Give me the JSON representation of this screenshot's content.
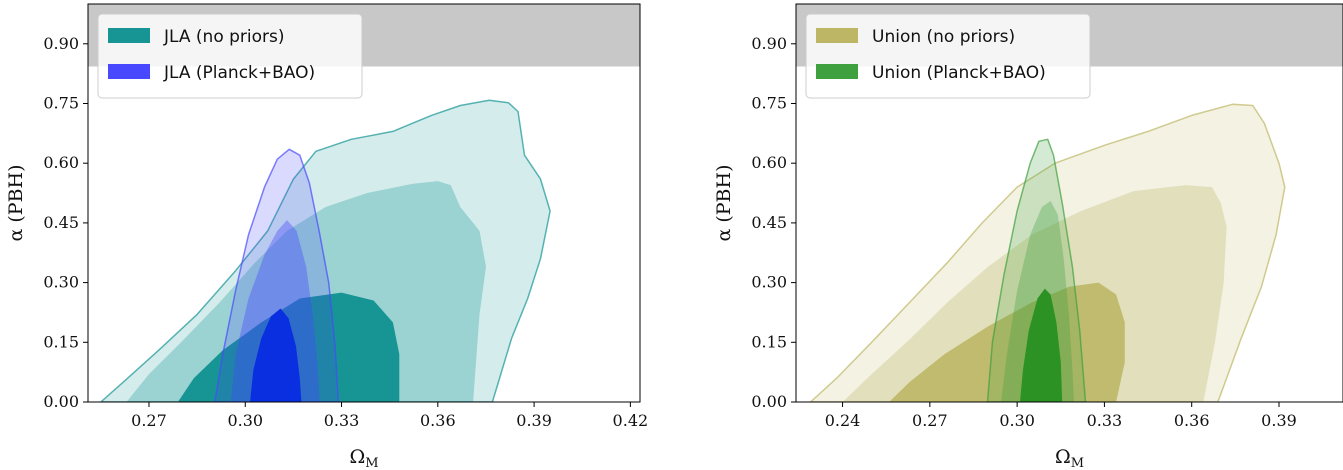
{
  "chart_data": [
    {
      "type": "contour",
      "xlabel": "Ω",
      "xlabel_sub": "M",
      "ylabel": "α (PBH)",
      "xlim": [
        0.251,
        0.423
      ],
      "ylim": [
        0.0,
        1.0
      ],
      "xticks": [
        "0.27",
        "0.30",
        "0.33",
        "0.36",
        "0.39",
        "0.42"
      ],
      "yticks": [
        "0.00",
        "0.15",
        "0.30",
        "0.45",
        "0.60",
        "0.75",
        "0.90"
      ],
      "excluded_band": {
        "from": 0.843,
        "to": 1.0,
        "color": "#c8c8c8"
      },
      "legend_position": "upper-left",
      "series": [
        {
          "name": "JLA (no priors)",
          "color": "#179494",
          "levels": [
            {
              "sigma": 3,
              "color": "#179494",
              "opacity": 0.18,
              "points": [
                [
                  0.255,
                  0.0
                ],
                [
                  0.262,
                  0.05
                ],
                [
                  0.273,
                  0.13
                ],
                [
                  0.285,
                  0.22
                ],
                [
                  0.297,
                  0.33
                ],
                [
                  0.307,
                  0.43
                ],
                [
                  0.315,
                  0.56
                ],
                [
                  0.322,
                  0.63
                ],
                [
                  0.333,
                  0.66
                ],
                [
                  0.346,
                  0.68
                ],
                [
                  0.358,
                  0.72
                ],
                [
                  0.367,
                  0.745
                ],
                [
                  0.376,
                  0.758
                ],
                [
                  0.382,
                  0.752
                ],
                [
                  0.385,
                  0.73
                ],
                [
                  0.387,
                  0.62
                ],
                [
                  0.392,
                  0.56
                ],
                [
                  0.395,
                  0.48
                ],
                [
                  0.392,
                  0.36
                ],
                [
                  0.388,
                  0.26
                ],
                [
                  0.383,
                  0.16
                ],
                [
                  0.377,
                  0.0
                ]
              ]
            },
            {
              "sigma": 2,
              "color": "#179494",
              "opacity": 0.3,
              "points": [
                [
                  0.263,
                  0.0
                ],
                [
                  0.27,
                  0.07
                ],
                [
                  0.28,
                  0.15
                ],
                [
                  0.292,
                  0.25
                ],
                [
                  0.303,
                  0.35
                ],
                [
                  0.313,
                  0.43
                ],
                [
                  0.325,
                  0.49
                ],
                [
                  0.338,
                  0.525
                ],
                [
                  0.352,
                  0.548
                ],
                [
                  0.36,
                  0.555
                ],
                [
                  0.364,
                  0.545
                ],
                [
                  0.367,
                  0.49
                ],
                [
                  0.373,
                  0.43
                ],
                [
                  0.375,
                  0.34
                ],
                [
                  0.373,
                  0.22
                ],
                [
                  0.371,
                  0.0
                ]
              ]
            },
            {
              "sigma": 1,
              "color": "#179494",
              "opacity": 1.0,
              "points": [
                [
                  0.279,
                  0.0
                ],
                [
                  0.284,
                  0.06
                ],
                [
                  0.293,
                  0.13
                ],
                [
                  0.305,
                  0.2
                ],
                [
                  0.317,
                  0.26
                ],
                [
                  0.33,
                  0.275
                ],
                [
                  0.34,
                  0.255
                ],
                [
                  0.346,
                  0.2
                ],
                [
                  0.348,
                  0.12
                ],
                [
                  0.348,
                  0.0
                ]
              ]
            }
          ]
        },
        {
          "name": "JLA (Planck+BAO)",
          "color": "#4848ff",
          "levels": [
            {
              "sigma": 2,
              "color": "#4848ff",
              "opacity": 0.2,
              "points": [
                [
                  0.2905,
                  0.0
                ],
                [
                  0.293,
                  0.12
                ],
                [
                  0.297,
                  0.28
                ],
                [
                  0.301,
                  0.42
                ],
                [
                  0.306,
                  0.54
                ],
                [
                  0.31,
                  0.61
                ],
                [
                  0.3137,
                  0.635
                ],
                [
                  0.317,
                  0.62
                ],
                [
                  0.32,
                  0.55
                ],
                [
                  0.323,
                  0.43
                ],
                [
                  0.326,
                  0.3
                ],
                [
                  0.328,
                  0.14
                ],
                [
                  0.329,
                  0.0
                ]
              ]
            },
            {
              "sigma": 1,
              "color": "#4848ff",
              "opacity": 0.38,
              "points": [
                [
                  0.2955,
                  0.0
                ],
                [
                  0.297,
                  0.12
                ],
                [
                  0.301,
                  0.26
                ],
                [
                  0.306,
                  0.37
                ],
                [
                  0.31,
                  0.43
                ],
                [
                  0.313,
                  0.457
                ],
                [
                  0.316,
                  0.43
                ],
                [
                  0.319,
                  0.34
                ],
                [
                  0.321,
                  0.22
                ],
                [
                  0.3225,
                  0.1
                ],
                [
                  0.3232,
                  0.0
                ]
              ]
            },
            {
              "sigma": 0,
              "color": "#0a2fe0",
              "opacity": 1.0,
              "points": [
                [
                  0.3015,
                  0.0
                ],
                [
                  0.3025,
                  0.08
                ],
                [
                  0.305,
                  0.16
                ],
                [
                  0.308,
                  0.215
                ],
                [
                  0.311,
                  0.235
                ],
                [
                  0.3135,
                  0.21
                ],
                [
                  0.3158,
                  0.14
                ],
                [
                  0.317,
                  0.06
                ],
                [
                  0.3175,
                  0.0
                ]
              ]
            }
          ]
        }
      ]
    },
    {
      "type": "contour",
      "xlabel": "Ω",
      "xlabel_sub": "M",
      "ylabel": "α (PBH)",
      "xlim": [
        0.224,
        0.412
      ],
      "ylim": [
        0.0,
        1.0
      ],
      "xticks": [
        "0.24",
        "0.27",
        "0.30",
        "0.33",
        "0.36",
        "0.39"
      ],
      "yticks": [
        "0.00",
        "0.15",
        "0.30",
        "0.45",
        "0.60",
        "0.75",
        "0.90"
      ],
      "excluded_band": {
        "from": 0.843,
        "to": 1.0,
        "color": "#c8c8c8"
      },
      "legend_position": "upper-left",
      "series": [
        {
          "name": "Union (no priors)",
          "color": "#bdb765",
          "levels": [
            {
              "sigma": 3,
              "color": "#bdb765",
              "opacity": 0.18,
              "points": [
                [
                  0.229,
                  0.0
                ],
                [
                  0.238,
                  0.06
                ],
                [
                  0.25,
                  0.15
                ],
                [
                  0.263,
                  0.25
                ],
                [
                  0.276,
                  0.35
                ],
                [
                  0.288,
                  0.45
                ],
                [
                  0.3,
                  0.54
                ],
                [
                  0.313,
                  0.6
                ],
                [
                  0.33,
                  0.645
                ],
                [
                  0.345,
                  0.68
                ],
                [
                  0.36,
                  0.72
                ],
                [
                  0.374,
                  0.748
                ],
                [
                  0.381,
                  0.745
                ],
                [
                  0.385,
                  0.7
                ],
                [
                  0.39,
                  0.6
                ],
                [
                  0.392,
                  0.54
                ],
                [
                  0.389,
                  0.42
                ],
                [
                  0.384,
                  0.29
                ],
                [
                  0.377,
                  0.16
                ],
                [
                  0.369,
                  0.0
                ]
              ]
            },
            {
              "sigma": 2,
              "color": "#bdb765",
              "opacity": 0.3,
              "points": [
                [
                  0.24,
                  0.0
                ],
                [
                  0.25,
                  0.07
                ],
                [
                  0.262,
                  0.15
                ],
                [
                  0.276,
                  0.25
                ],
                [
                  0.29,
                  0.34
                ],
                [
                  0.305,
                  0.42
                ],
                [
                  0.322,
                  0.48
                ],
                [
                  0.34,
                  0.53
                ],
                [
                  0.358,
                  0.545
                ],
                [
                  0.367,
                  0.54
                ],
                [
                  0.37,
                  0.5
                ],
                [
                  0.372,
                  0.44
                ],
                [
                  0.371,
                  0.3
                ],
                [
                  0.368,
                  0.15
                ],
                [
                  0.364,
                  0.0
                ]
              ]
            },
            {
              "sigma": 1,
              "color": "#bdb765",
              "opacity": 0.9,
              "points": [
                [
                  0.256,
                  0.0
                ],
                [
                  0.263,
                  0.05
                ],
                [
                  0.275,
                  0.12
                ],
                [
                  0.29,
                  0.19
                ],
                [
                  0.305,
                  0.25
                ],
                [
                  0.318,
                  0.29
                ],
                [
                  0.328,
                  0.3
                ],
                [
                  0.334,
                  0.27
                ],
                [
                  0.337,
                  0.2
                ],
                [
                  0.337,
                  0.1
                ],
                [
                  0.334,
                  0.0
                ]
              ]
            }
          ]
        },
        {
          "name": "Union (Planck+BAO)",
          "color": "#3fa03f",
          "levels": [
            {
              "sigma": 2,
              "color": "#3fa03f",
              "opacity": 0.22,
              "points": [
                [
                  0.2898,
                  0.0
                ],
                [
                  0.2915,
                  0.15
                ],
                [
                  0.2955,
                  0.32
                ],
                [
                  0.3,
                  0.48
                ],
                [
                  0.3045,
                  0.6
                ],
                [
                  0.3075,
                  0.655
                ],
                [
                  0.3105,
                  0.66
                ],
                [
                  0.3125,
                  0.62
                ],
                [
                  0.3155,
                  0.5
                ],
                [
                  0.319,
                  0.34
                ],
                [
                  0.3215,
                  0.18
                ],
                [
                  0.3235,
                  0.0
                ]
              ]
            },
            {
              "sigma": 1,
              "color": "#3fa03f",
              "opacity": 0.32,
              "points": [
                [
                  0.2945,
                  0.0
                ],
                [
                  0.2965,
                  0.12
                ],
                [
                  0.3,
                  0.28
                ],
                [
                  0.3045,
                  0.42
                ],
                [
                  0.3085,
                  0.49
                ],
                [
                  0.3115,
                  0.505
                ],
                [
                  0.314,
                  0.47
                ],
                [
                  0.316,
                  0.36
                ],
                [
                  0.3178,
                  0.22
                ],
                [
                  0.319,
                  0.08
                ],
                [
                  0.3195,
                  0.0
                ]
              ]
            },
            {
              "sigma": 0,
              "color": "#2c9223",
              "opacity": 1.0,
              "points": [
                [
                  0.301,
                  0.0
                ],
                [
                  0.302,
                  0.08
                ],
                [
                  0.304,
                  0.18
                ],
                [
                  0.307,
                  0.26
                ],
                [
                  0.3095,
                  0.285
                ],
                [
                  0.3115,
                  0.27
                ],
                [
                  0.3135,
                  0.2
                ],
                [
                  0.315,
                  0.1
                ],
                [
                  0.3155,
                  0.0
                ]
              ]
            }
          ]
        }
      ]
    }
  ]
}
